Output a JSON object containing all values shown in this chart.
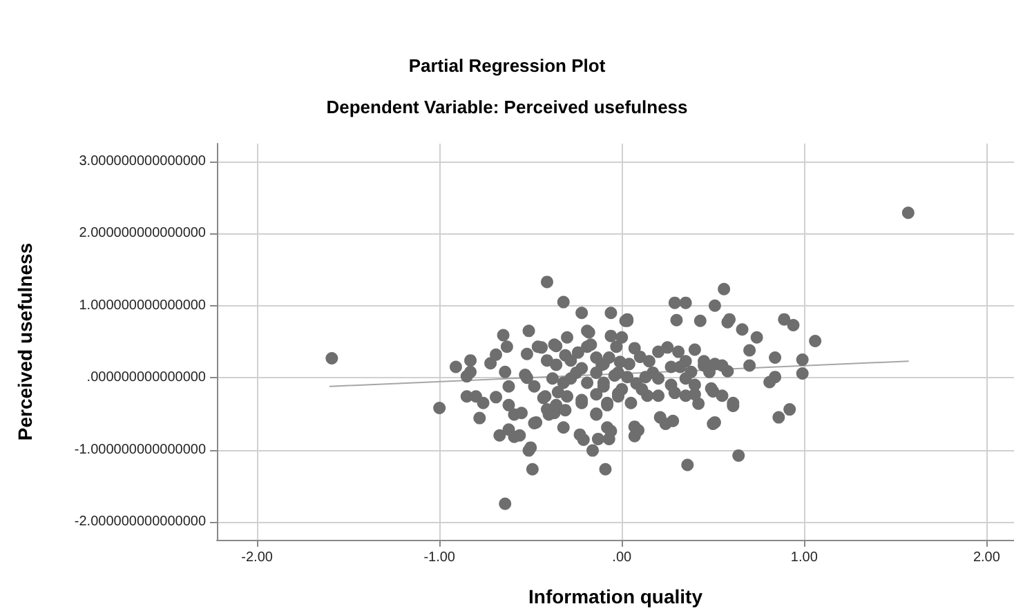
{
  "chart_data": {
    "type": "scatter",
    "title": "Partial Regression Plot",
    "subtitle": "Dependent Variable: Perceived usefulness",
    "xlabel": "Information quality",
    "ylabel": "Perceived usefulness",
    "xlim": [
      -2.22,
      2.15
    ],
    "ylim": [
      -2.25,
      3.25
    ],
    "xticks": [
      {
        "value": -2,
        "label": "-2.00"
      },
      {
        "value": -1,
        "label": "-1.00"
      },
      {
        "value": 0,
        "label": ".00"
      },
      {
        "value": 1,
        "label": "1.00"
      },
      {
        "value": 2,
        "label": "2.00"
      }
    ],
    "yticks": [
      {
        "value": -2,
        "label": "-2.000000000000000"
      },
      {
        "value": -1,
        "label": "-1.000000000000000"
      },
      {
        "value": 0,
        "label": ".000000000000000"
      },
      {
        "value": 1,
        "label": "1.000000000000000"
      },
      {
        "value": 2,
        "label": "2.000000000000000"
      },
      {
        "value": 3,
        "label": "3.000000000000000"
      }
    ],
    "grid": true,
    "series": [
      {
        "marker": "circle",
        "color": "#6e6e6e",
        "x": [
          -1.59,
          -1.0,
          -0.64,
          -0.41,
          -0.32,
          -0.49,
          -0.09,
          -0.91,
          -0.85,
          -0.83,
          -0.83,
          -0.85,
          -0.8,
          -0.78,
          -0.76,
          -0.72,
          -0.69,
          -0.69,
          -0.65,
          -0.63,
          -0.64,
          -0.62,
          -0.62,
          -0.62,
          -0.67,
          -0.59,
          -0.59,
          -0.55,
          -0.56,
          -0.51,
          -0.5,
          -0.51,
          -0.52,
          -0.53,
          -0.52,
          -0.48,
          -0.47,
          -0.48,
          -0.46,
          -0.44,
          -0.41,
          -0.37,
          -0.36,
          -0.43,
          -0.41,
          -0.37,
          -0.38,
          -0.35,
          -0.32,
          -0.3,
          -0.31,
          -0.28,
          -0.28,
          -0.23,
          -0.21,
          -0.22,
          -0.22,
          -0.19,
          -0.19,
          -0.16,
          -0.14,
          -0.13,
          -0.11,
          -0.1,
          -0.08,
          -0.08,
          -0.07,
          -0.06,
          -0.06,
          -0.03,
          -0.02,
          0.03,
          1.57,
          0.56,
          0.29,
          0.35,
          0.51,
          0.89,
          0.94,
          1.06,
          0.66,
          0.74,
          0.59,
          0.58,
          0.43,
          0.3,
          0.03,
          0.7,
          0.84,
          0.99,
          0.99,
          0.7,
          0.58,
          0.84,
          0.81,
          0.86,
          0.92,
          0.64,
          0.36,
          0.61,
          0.61,
          0.55,
          0.51,
          0.5,
          0.42,
          0.5,
          0.49,
          0.4,
          0.35,
          0.29,
          0.21,
          0.24,
          0.28,
          0.2,
          0.14,
          0.07,
          0.09,
          0.05,
          -0.06,
          0.07,
          0.1,
          0.15,
          0.2,
          0.25,
          0.31,
          0.35,
          0.4,
          0.27,
          0.32,
          0.38,
          0.48,
          0.51,
          0.55,
          0.45,
          0.17,
          0.13,
          0.08,
          0.03,
          0.2,
          0.27,
          0.35,
          0.4,
          0.0,
          0.11,
          0.04,
          -0.02,
          0.0,
          0.45,
          -0.36,
          -0.18,
          0.02,
          -0.17,
          -0.14,
          -0.07,
          -0.24,
          -0.32,
          -0.25,
          -0.19,
          -0.14,
          -0.1,
          -0.04,
          -0.42,
          -0.36,
          -0.3,
          -0.22,
          -0.14,
          -0.08,
          -0.02,
          -0.4,
          -0.31,
          -0.22,
          -0.1,
          -0.01,
          -0.14,
          0.07
        ],
        "values": [
          0.27,
          -0.42,
          -1.75,
          1.33,
          1.05,
          -1.27,
          -1.27,
          0.15,
          0.02,
          0.24,
          0.08,
          -0.26,
          -0.26,
          -0.56,
          -0.35,
          0.2,
          0.32,
          -0.27,
          0.59,
          0.43,
          0.08,
          -0.12,
          -0.38,
          -0.72,
          -0.8,
          -0.51,
          -0.82,
          -0.49,
          -0.8,
          -1.01,
          -0.97,
          0.65,
          0.33,
          0.04,
          0.0,
          -0.12,
          -0.62,
          -0.63,
          0.43,
          0.42,
          0.24,
          0.46,
          0.18,
          -0.28,
          -0.44,
          -0.49,
          -0.01,
          -0.2,
          -0.69,
          0.56,
          0.31,
          0.24,
          -0.01,
          -0.79,
          -0.86,
          0.9,
          -0.31,
          0.65,
          0.43,
          -1.01,
          -0.5,
          -0.85,
          0.18,
          -0.12,
          -0.69,
          -0.35,
          -0.85,
          0.58,
          0.9,
          0.43,
          -0.22,
          0.81,
          2.29,
          1.23,
          1.04,
          1.04,
          1.0,
          0.81,
          0.73,
          0.51,
          0.67,
          0.56,
          0.81,
          0.77,
          0.79,
          0.8,
          0.79,
          0.38,
          0.28,
          0.25,
          0.06,
          0.17,
          0.09,
          0.01,
          -0.06,
          -0.55,
          -0.44,
          -1.08,
          -1.21,
          -0.39,
          -0.35,
          -0.25,
          -0.62,
          -0.64,
          -0.36,
          -0.19,
          -0.15,
          -0.23,
          -0.25,
          -0.21,
          -0.55,
          -0.64,
          -0.6,
          -0.25,
          -0.25,
          -0.68,
          -0.73,
          -0.35,
          -0.74,
          0.41,
          0.29,
          0.23,
          0.36,
          0.42,
          0.36,
          0.23,
          0.39,
          0.15,
          0.15,
          0.08,
          0.08,
          0.19,
          0.17,
          0.17,
          0.07,
          0.01,
          -0.08,
          0.01,
          -0.01,
          -0.1,
          -0.01,
          -0.1,
          -0.16,
          -0.16,
          0.19,
          0.07,
          0.56,
          0.23,
          0.44,
          0.63,
          0.79,
          0.46,
          0.28,
          0.28,
          0.35,
          -0.07,
          0.07,
          -0.07,
          0.07,
          -0.07,
          0.03,
          -0.26,
          -0.38,
          -0.26,
          -0.35,
          -0.23,
          -0.38,
          -0.26,
          -0.51,
          -0.45,
          0.13,
          0.19,
          0.22,
          -0.51,
          -0.81
        ]
      },
      {
        "type": "line",
        "marker": "none",
        "line_style": "solid",
        "color": "#a6a6a6",
        "x": [
          -1.6,
          1.57
        ],
        "values": [
          -0.12,
          0.23
        ]
      }
    ]
  }
}
